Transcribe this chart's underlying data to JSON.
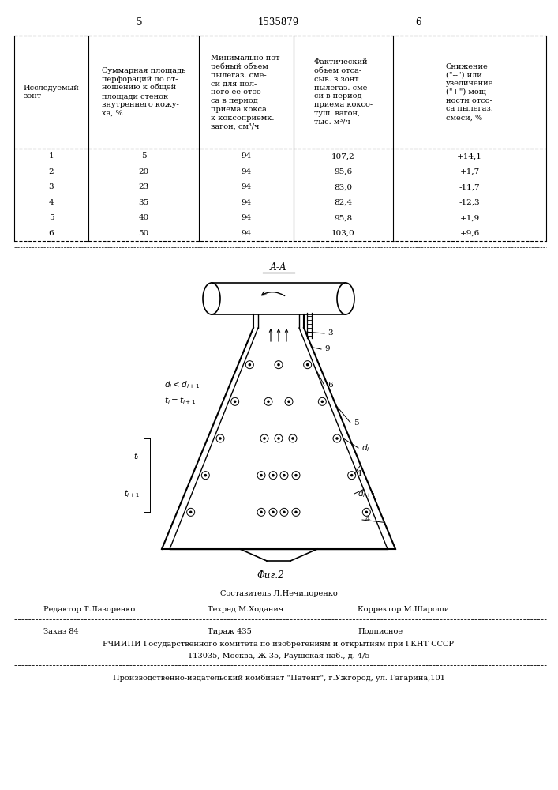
{
  "page_number_left": "5",
  "page_number_center": "1535879",
  "page_number_right": "6",
  "bg_color": "#ffffff",
  "table_data": [
    [
      "1",
      "5",
      "94",
      "107,2",
      "+14,1"
    ],
    [
      "2",
      "20",
      "94",
      "95,6",
      "+1,7"
    ],
    [
      "3",
      "23",
      "94",
      "83,0",
      "-11,7"
    ],
    [
      "4",
      "35",
      "94",
      "82,4",
      "-12,3"
    ],
    [
      "5",
      "40",
      "94",
      "95,8",
      "+1,9"
    ],
    [
      "6",
      "50",
      "94",
      "103,0",
      "+9,6"
    ]
  ],
  "footer_compiler": "Составитель Л.Нечипоренко",
  "footer_editor": "Редактор Т.Лазоренко",
  "footer_techred": "Техред М.Ходанич",
  "footer_corrector": "Корректор М.Шароши",
  "footer_order": "Заказ 84",
  "footer_edition": "Тираж 435",
  "footer_subscription": "Подписное",
  "footer_org": "РЧИИПИ Государственного комитета по изобретениям и открытиям при ГКНТ СССР",
  "footer_address": "113035, Москва, Ж-35, Раушская наб., д. 4/5",
  "footer_publisher": "Производственно-издательский комбинат \"Патент\", г.Ужгород, ул. Гагарина,101"
}
